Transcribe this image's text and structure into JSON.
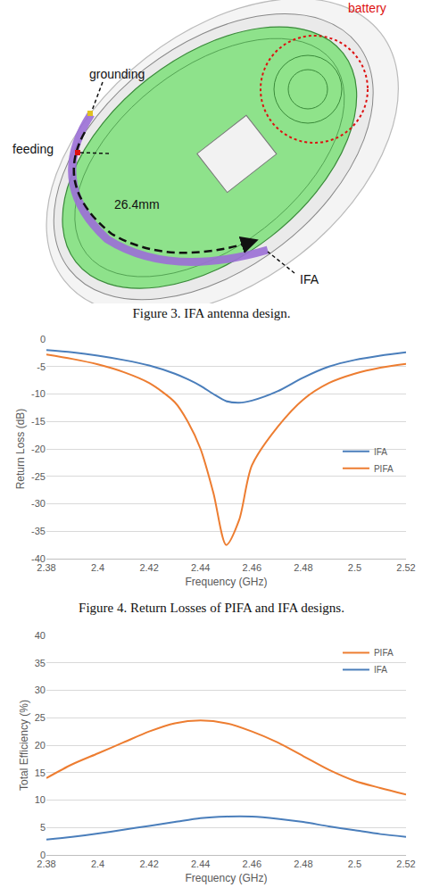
{
  "figure3": {
    "labels": {
      "battery": "battery",
      "grounding": "grounding",
      "feeding": "feeding",
      "length": "26.4mm",
      "antenna": "IFA"
    },
    "caption": "Figure 3. IFA antenna design."
  },
  "chart_data": [
    {
      "type": "line",
      "caption": "Figure 4. Return Losses of PIFA and IFA designs.",
      "x_label": "Frequency (GHz)",
      "y_label": "Return Loss (dB)",
      "x": [
        2.38,
        2.39,
        2.4,
        2.41,
        2.42,
        2.43,
        2.435,
        2.44,
        2.445,
        2.45,
        2.455,
        2.46,
        2.47,
        2.48,
        2.49,
        2.5,
        2.51,
        2.52
      ],
      "series": [
        {
          "name": "IFA",
          "color": "#4a7ebb",
          "values": [
            -2,
            -2.4,
            -3,
            -3.8,
            -4.8,
            -6.3,
            -7.3,
            -8.5,
            -10,
            -11.3,
            -11.6,
            -11.2,
            -9.5,
            -7,
            -5,
            -3.8,
            -3,
            -2.4
          ]
        },
        {
          "name": "PIFA",
          "color": "#ed7d31",
          "values": [
            -2.8,
            -3.6,
            -4.6,
            -6,
            -8,
            -11.5,
            -15,
            -20,
            -28,
            -37.5,
            -33,
            -23,
            -16,
            -11,
            -8,
            -6.3,
            -5.2,
            -4.5
          ]
        }
      ],
      "xlim": [
        2.38,
        2.52
      ],
      "xticks": [
        2.38,
        2.4,
        2.42,
        2.44,
        2.46,
        2.48,
        2.5,
        2.52
      ],
      "ylim": [
        -40,
        0
      ],
      "yticks": [
        -40,
        -35,
        -30,
        -25,
        -20,
        -15,
        -10,
        -5,
        0
      ],
      "grid": true,
      "legend": "right"
    },
    {
      "type": "line",
      "x_label": "Frequency (GHz)",
      "y_label": "Total Efficiency (%)",
      "x": [
        2.38,
        2.39,
        2.4,
        2.41,
        2.42,
        2.43,
        2.44,
        2.45,
        2.46,
        2.47,
        2.48,
        2.49,
        2.5,
        2.51,
        2.52
      ],
      "series": [
        {
          "name": "PIFA",
          "color": "#ed7d31",
          "values": [
            14,
            16.5,
            18.5,
            20.5,
            22.5,
            24,
            24.5,
            24,
            22.5,
            20.5,
            18,
            15.5,
            13.5,
            12.2,
            11
          ]
        },
        {
          "name": "IFA",
          "color": "#4a7ebb",
          "values": [
            2.8,
            3.3,
            3.9,
            4.6,
            5.3,
            6,
            6.7,
            7,
            7,
            6.6,
            6,
            5.2,
            4.5,
            3.8,
            3.3
          ]
        }
      ],
      "xlim": [
        2.38,
        2.52
      ],
      "xticks": [
        2.38,
        2.4,
        2.42,
        2.44,
        2.46,
        2.48,
        2.5,
        2.52
      ],
      "ylim": [
        0,
        40
      ],
      "yticks": [
        0,
        5,
        10,
        15,
        20,
        25,
        30,
        35,
        40
      ],
      "grid": true,
      "legend": "upper right"
    }
  ]
}
